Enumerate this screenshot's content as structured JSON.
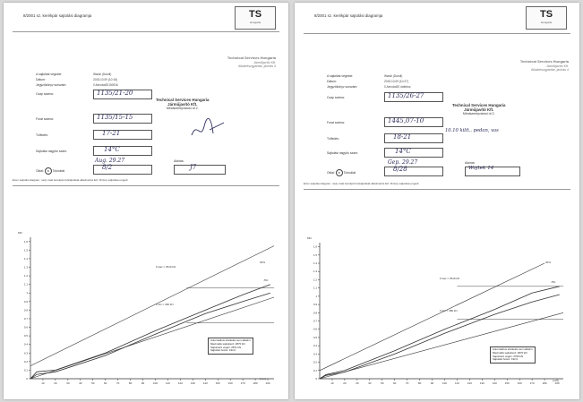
{
  "documents": [
    {
      "title": "8/2001 sz. kerékpár sajtolási diagramja",
      "logo": "TS",
      "logo_sub": "Hungaria",
      "company": [
        "Technical Services Hungaria",
        "Járműjavító Kft.",
        "Alkatrészgyártás, javítás 4"
      ],
      "stamp": [
        "Technical Services Hungaria",
        "Járműjavító Kft.",
        "Mindszentyvárosi út 2."
      ],
      "fields": [
        {
          "label": "A sajtolást végezte:",
          "value": "Wandi (Dandi)"
        },
        {
          "label": "Dátum:",
          "value": "2015.10.09 (10:16)"
        },
        {
          "label": "Jegyzőkönyv sorszám:",
          "value": "0 Aerodat20150916"
        },
        {
          "label": "Csap száma:",
          "value": "1135/21-20"
        },
        {
          "label": "Furat száma:",
          "value": "1135/15-15"
        },
        {
          "label": "Túlfedés:",
          "value": "17-21"
        },
        {
          "label": "Sajtolási nagyító szám:",
          "value": "14°C"
        }
      ],
      "date_handwritten": "Aug. 29.27",
      "signature_label": "Aláírás:",
      "radio_label": "Oldal:",
      "radio_selected": "B",
      "radio_option": "Tolóoldal",
      "mark_value": "8/2",
      "signature_value": "J7",
      "footnote": "Ezen sajtolási diagram, mely csak kerékpár felsajtolását alkalmazza Ezt 16 lány sajtolása engedi",
      "info": [
        "Automatikus értékelés sem alkalmi",
        "Maximális sajtolóerő: 2870 kN",
        "Sajtolóerő végén: 2871 kN",
        "Sajtolási hossz: 192,0"
      ],
      "labels": {
        "fmax": "Fmax = 3510 kN",
        "fmin": "Fmin = 460 kN",
        "top_pct": "30%",
        "low_pct": "-5%",
        "y_unit": "MN",
        "x_unit": "[mm]"
      }
    },
    {
      "title": "8/2001 sz. kerékpár sajtolási diagramja",
      "logo": "TS",
      "logo_sub": "Hungaria",
      "company": [
        "Technical Services Hungaria",
        "Járműjavító Kft.",
        "Alkatrészgyártás, javítás 4"
      ],
      "stamp": [
        "Technical Services Hungaria",
        "Járműjavító Kft.",
        "Mindszentyvárosi út 2."
      ],
      "fields": [
        {
          "label": "A sajtolást végezte:",
          "value": "Wandi (Dandi)"
        },
        {
          "label": "Dátum:",
          "value": "2015.10.09 (10:27)"
        },
        {
          "label": "Jegyzőkönyv sorszám:",
          "value": "0 Aerodat20 dottetus"
        },
        {
          "label": "Csap száma:",
          "value": "1135/26-27"
        },
        {
          "label": "Furat száma:",
          "value": "1445,07-10"
        },
        {
          "label": "Túlfedés:",
          "value": "18-21"
        },
        {
          "label": "Sajtolási nagyító szám:",
          "value": "14°C"
        }
      ],
      "date_handwritten": "Gep. 29.27",
      "signature_label": "Aláírás:",
      "radio_label": "Oldal:",
      "radio_selected": "B",
      "radio_option": "Tolóoldal",
      "mark_value": "8/28",
      "signature_value": "Wojtek 14",
      "handnote": "10.10 kilit.. pedan, vas",
      "footnote": "Ezen sajtolási diagram, mely csak kerékpár felsajtolását alkalmazza Ezt 16 lány sajtolása engedi",
      "info": [
        "Automatikus értékelés sem alkalmi",
        "Maximális sajtolóerő: 2870 kN",
        "Sajtolóerő végén: 3750 kN",
        "Sajtolási hossz: 192,0"
      ],
      "labels": {
        "fmax": "Fmax = 3510 kN",
        "fmin": "Fmin = 480 kN",
        "top_pct": "30%",
        "low_pct": "-5%",
        "y_unit": "MN",
        "x_unit": "[mm]"
      }
    }
  ],
  "chart_data": [
    {
      "type": "line",
      "title": "",
      "xlabel": "[mm]",
      "ylabel": "MN",
      "x_ticks": [
        10,
        20,
        30,
        40,
        50,
        60,
        70,
        80,
        90,
        100,
        110,
        120,
        130,
        140,
        150,
        160,
        170,
        180,
        190
      ],
      "y_ticks": [
        0,
        0.1,
        0.2,
        0.3,
        0.4,
        0.5,
        0.6,
        0.7,
        0.8,
        0.9,
        1,
        1.1,
        1.2,
        1.3,
        1.4,
        1.5,
        1.6
      ],
      "xlim": [
        0,
        195
      ],
      "ylim": [
        0,
        1.65
      ],
      "series": [
        {
          "x": [
            0,
            195
          ],
          "y": [
            0.15,
            1.55
          ]
        },
        {
          "x": [
            0,
            195
          ],
          "y": [
            0,
            0.95
          ]
        },
        {
          "x": [
            0,
            5,
            20,
            60,
            100,
            140,
            170,
            192
          ],
          "y": [
            0,
            0.08,
            0.1,
            0.3,
            0.56,
            0.8,
            0.98,
            1.1
          ]
        },
        {
          "x": [
            0,
            5,
            20,
            60,
            100,
            140,
            170,
            192
          ],
          "y": [
            0,
            0.05,
            0.08,
            0.27,
            0.52,
            0.76,
            0.9,
            1.0
          ]
        }
      ],
      "hlines": [
        {
          "y": 1.06,
          "x": [
            125,
            195
          ]
        },
        {
          "y": 0.65,
          "x": [
            125,
            195
          ]
        }
      ]
    },
    {
      "type": "line",
      "title": "",
      "xlabel": "[mm]",
      "ylabel": "MN",
      "x_ticks": [
        10,
        20,
        30,
        40,
        50,
        60,
        70,
        80,
        90,
        100,
        110,
        120,
        130,
        140,
        150,
        160,
        170,
        180,
        190
      ],
      "y_ticks": [
        0,
        0.1,
        0.2,
        0.3,
        0.4,
        0.5,
        0.6,
        0.7,
        0.8,
        0.9,
        1,
        1.1,
        1.2,
        1.3,
        1.4,
        1.5,
        1.6
      ],
      "xlim": [
        0,
        195
      ],
      "ylim": [
        0,
        1.65
      ],
      "series": [
        {
          "x": [
            0,
            180
          ],
          "y": [
            0.1,
            1.4
          ]
        },
        {
          "x": [
            0,
            195
          ],
          "y": [
            0,
            0.8
          ]
        },
        {
          "x": [
            0,
            5,
            20,
            60,
            100,
            140,
            170,
            192
          ],
          "y": [
            0,
            0.05,
            0.1,
            0.34,
            0.6,
            0.84,
            1.04,
            1.12
          ]
        },
        {
          "x": [
            0,
            5,
            20,
            60,
            100,
            140,
            170,
            192
          ],
          "y": [
            0,
            0.04,
            0.08,
            0.3,
            0.55,
            0.78,
            0.93,
            1.02
          ]
        }
      ],
      "hlines": [
        {
          "y": 1.12,
          "x": [
            110,
            195
          ]
        },
        {
          "y": 0.72,
          "x": [
            110,
            195
          ]
        }
      ]
    }
  ]
}
